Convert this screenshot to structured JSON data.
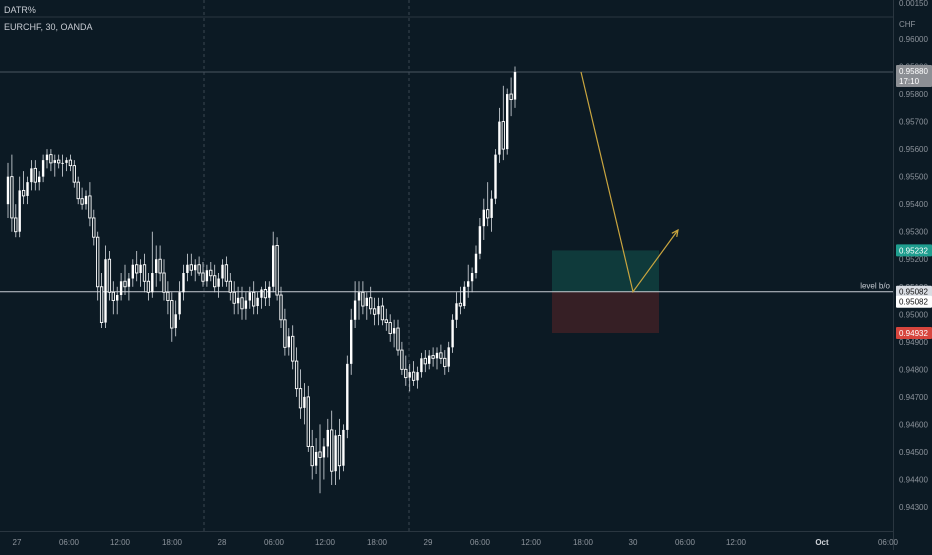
{
  "indicator_pane": {
    "label": "DATR%",
    "top_tick": "0.00150"
  },
  "symbol": {
    "label": "EURCHF, 30, OANDA"
  },
  "price_axis": {
    "currency": "CHF"
  },
  "colors": {
    "background": "#0c1a24",
    "candle_up": "#ffffff",
    "candle_down": "#ffffff",
    "wick": "#d9dde3",
    "grid_session": "#3a4651",
    "level_line": "#c8ccd3",
    "arrow": "#c9a53f",
    "target_zone": "#0f3e3e",
    "stop_zone": "#3b2026",
    "target_label": "#1f9e8f",
    "stop_label": "#d6453d",
    "last_price_label": "#8c8f94"
  },
  "chart_data": {
    "type": "candlestick",
    "title": "EURCHF, 30, OANDA",
    "ylim": [
      0.9425,
      0.962
    ],
    "y_ticks": [
      "0.96000",
      "0.95900",
      "0.95800",
      "0.95700",
      "0.95600",
      "0.95500",
      "0.95400",
      "0.95300",
      "0.95200",
      "0.95100",
      "0.95000",
      "0.94900",
      "0.94800",
      "0.94700",
      "0.94600",
      "0.94500",
      "0.94400",
      "0.94300"
    ],
    "x_ticks": [
      "27",
      "06:00",
      "12:00",
      "18:00",
      "28",
      "06:00",
      "12:00",
      "18:00",
      "29",
      "06:00",
      "12:00",
      "18:00",
      "30",
      "06:00",
      "12:00",
      "Oct",
      "06:00"
    ],
    "session_breaks": [
      "28",
      "29"
    ],
    "price_labels": {
      "last_price": "0.95880",
      "countdown": "17:10",
      "target": "0.95232",
      "level": "0.95082",
      "level_copy": "0.95082",
      "stop": "0.94932"
    },
    "level_line": {
      "label": "level b/o",
      "value": 0.95082
    },
    "position_tool": {
      "entry": 0.95082,
      "target": 0.95232,
      "stop": 0.94932
    },
    "projection_path": [
      {
        "bar": 146,
        "value": 0.9588
      },
      {
        "bar": 163,
        "value": 0.95082
      },
      {
        "bar": 174,
        "value": 0.953
      }
    ],
    "bar_interval_minutes": 30,
    "ohlc": [
      [
        0.954,
        0.9555,
        0.9535,
        0.955
      ],
      [
        0.955,
        0.9558,
        0.953,
        0.9535
      ],
      [
        0.9535,
        0.954,
        0.9528,
        0.953
      ],
      [
        0.953,
        0.955,
        0.9528,
        0.9545
      ],
      [
        0.9545,
        0.9552,
        0.954,
        0.9543
      ],
      [
        0.9543,
        0.955,
        0.954,
        0.9548
      ],
      [
        0.9548,
        0.9556,
        0.9545,
        0.9553
      ],
      [
        0.9553,
        0.9556,
        0.9545,
        0.9548
      ],
      [
        0.9548,
        0.9552,
        0.9545,
        0.955
      ],
      [
        0.955,
        0.9558,
        0.9548,
        0.9556
      ],
      [
        0.9556,
        0.956,
        0.9553,
        0.9558
      ],
      [
        0.9558,
        0.956,
        0.9552,
        0.9555
      ],
      [
        0.9555,
        0.9558,
        0.955,
        0.9556
      ],
      [
        0.9556,
        0.9558,
        0.9553,
        0.9555
      ],
      [
        0.9555,
        0.9558,
        0.955,
        0.9555
      ],
      [
        0.9555,
        0.9557,
        0.9552,
        0.9556
      ],
      [
        0.9556,
        0.9558,
        0.9552,
        0.9554
      ],
      [
        0.9554,
        0.9556,
        0.9546,
        0.9548
      ],
      [
        0.9548,
        0.955,
        0.954,
        0.9542
      ],
      [
        0.9542,
        0.9546,
        0.9538,
        0.954
      ],
      [
        0.954,
        0.9545,
        0.9538,
        0.9543
      ],
      [
        0.9543,
        0.9548,
        0.9532,
        0.9535
      ],
      [
        0.9535,
        0.9538,
        0.9525,
        0.9528
      ],
      [
        0.9528,
        0.953,
        0.9505,
        0.951
      ],
      [
        0.951,
        0.9515,
        0.9495,
        0.9497
      ],
      [
        0.9497,
        0.9525,
        0.9495,
        0.952
      ],
      [
        0.952,
        0.9523,
        0.9505,
        0.9508
      ],
      [
        0.9508,
        0.9512,
        0.95,
        0.9505
      ],
      [
        0.9505,
        0.951,
        0.95,
        0.9507
      ],
      [
        0.9507,
        0.9515,
        0.9505,
        0.9512
      ],
      [
        0.9512,
        0.9518,
        0.9507,
        0.951
      ],
      [
        0.951,
        0.9515,
        0.9505,
        0.9513
      ],
      [
        0.9513,
        0.952,
        0.951,
        0.9518
      ],
      [
        0.9518,
        0.9523,
        0.9512,
        0.9515
      ],
      [
        0.9515,
        0.952,
        0.951,
        0.9518
      ],
      [
        0.9518,
        0.9522,
        0.9508,
        0.9512
      ],
      [
        0.9512,
        0.9515,
        0.9505,
        0.9508
      ],
      [
        0.9508,
        0.953,
        0.9506,
        0.9515
      ],
      [
        0.9515,
        0.9525,
        0.951,
        0.952
      ],
      [
        0.952,
        0.9525,
        0.9512,
        0.9515
      ],
      [
        0.9515,
        0.952,
        0.9505,
        0.9508
      ],
      [
        0.9508,
        0.9512,
        0.95,
        0.9505
      ],
      [
        0.9505,
        0.9508,
        0.949,
        0.9495
      ],
      [
        0.9495,
        0.9505,
        0.9492,
        0.95
      ],
      [
        0.95,
        0.9512,
        0.9498,
        0.9508
      ],
      [
        0.9508,
        0.9518,
        0.9505,
        0.9515
      ],
      [
        0.9515,
        0.9522,
        0.9512,
        0.9518
      ],
      [
        0.9518,
        0.9522,
        0.9514,
        0.9516
      ],
      [
        0.9516,
        0.952,
        0.9512,
        0.9518
      ],
      [
        0.9518,
        0.9521,
        0.9514,
        0.9515
      ],
      [
        0.9515,
        0.9519,
        0.951,
        0.9512
      ],
      [
        0.9512,
        0.9518,
        0.951,
        0.9516
      ],
      [
        0.9516,
        0.9519,
        0.9512,
        0.9514
      ],
      [
        0.9514,
        0.9518,
        0.9508,
        0.951
      ],
      [
        0.951,
        0.9515,
        0.9506,
        0.9513
      ],
      [
        0.9513,
        0.952,
        0.951,
        0.9518
      ],
      [
        0.9518,
        0.9521,
        0.951,
        0.9512
      ],
      [
        0.9512,
        0.9515,
        0.9505,
        0.9508
      ],
      [
        0.9508,
        0.9512,
        0.95,
        0.9504
      ],
      [
        0.9504,
        0.951,
        0.95,
        0.9506
      ],
      [
        0.9506,
        0.951,
        0.9498,
        0.9502
      ],
      [
        0.9502,
        0.9508,
        0.9498,
        0.9505
      ],
      [
        0.9505,
        0.951,
        0.9502,
        0.9508
      ],
      [
        0.9508,
        0.9512,
        0.95,
        0.9503
      ],
      [
        0.9503,
        0.9508,
        0.95,
        0.9506
      ],
      [
        0.9506,
        0.951,
        0.9502,
        0.9509
      ],
      [
        0.9509,
        0.9512,
        0.9503,
        0.9506
      ],
      [
        0.9506,
        0.9512,
        0.9503,
        0.951
      ],
      [
        0.951,
        0.953,
        0.9508,
        0.9525
      ],
      [
        0.9525,
        0.9528,
        0.9505,
        0.9507
      ],
      [
        0.9507,
        0.951,
        0.9495,
        0.9498
      ],
      [
        0.9498,
        0.9502,
        0.9485,
        0.9488
      ],
      [
        0.9488,
        0.9495,
        0.9485,
        0.9492
      ],
      [
        0.9492,
        0.9496,
        0.948,
        0.9483
      ],
      [
        0.9483,
        0.9488,
        0.947,
        0.9473
      ],
      [
        0.9473,
        0.948,
        0.9462,
        0.9466
      ],
      [
        0.9466,
        0.9475,
        0.946,
        0.947
      ],
      [
        0.947,
        0.9474,
        0.945,
        0.9452
      ],
      [
        0.9452,
        0.9458,
        0.944,
        0.9445
      ],
      [
        0.9445,
        0.9455,
        0.9442,
        0.945
      ],
      [
        0.945,
        0.946,
        0.9435,
        0.9448
      ],
      [
        0.9448,
        0.9455,
        0.944,
        0.9452
      ],
      [
        0.9452,
        0.9462,
        0.9448,
        0.9458
      ],
      [
        0.9458,
        0.9465,
        0.9438,
        0.9443
      ],
      [
        0.9443,
        0.9458,
        0.9438,
        0.9456
      ],
      [
        0.9456,
        0.9462,
        0.944,
        0.9445
      ],
      [
        0.9445,
        0.946,
        0.9443,
        0.9458
      ],
      [
        0.9458,
        0.9485,
        0.9455,
        0.9482
      ],
      [
        0.9482,
        0.9502,
        0.9478,
        0.9498
      ],
      [
        0.9498,
        0.9512,
        0.9495,
        0.9505
      ],
      [
        0.9505,
        0.9512,
        0.9498,
        0.9508
      ],
      [
        0.9508,
        0.9512,
        0.95,
        0.9503
      ],
      [
        0.9503,
        0.9508,
        0.9498,
        0.9506
      ],
      [
        0.9506,
        0.951,
        0.95,
        0.9502
      ],
      [
        0.9502,
        0.9506,
        0.9496,
        0.95
      ],
      [
        0.95,
        0.9506,
        0.9496,
        0.9503
      ],
      [
        0.9503,
        0.9506,
        0.9496,
        0.9498
      ],
      [
        0.9498,
        0.9502,
        0.9494,
        0.9497
      ],
      [
        0.9497,
        0.95,
        0.949,
        0.9493
      ],
      [
        0.9493,
        0.9498,
        0.9488,
        0.9495
      ],
      [
        0.9495,
        0.9498,
        0.9485,
        0.9487
      ],
      [
        0.9487,
        0.949,
        0.9478,
        0.948
      ],
      [
        0.948,
        0.9485,
        0.9474,
        0.9477
      ],
      [
        0.9477,
        0.9482,
        0.9472,
        0.9479
      ],
      [
        0.9479,
        0.9483,
        0.9474,
        0.9476
      ],
      [
        0.9476,
        0.9481,
        0.9473,
        0.9479
      ],
      [
        0.9479,
        0.9486,
        0.9477,
        0.9484
      ],
      [
        0.9484,
        0.9487,
        0.9479,
        0.9482
      ],
      [
        0.9482,
        0.9487,
        0.948,
        0.9485
      ],
      [
        0.9485,
        0.9488,
        0.9481,
        0.9484
      ],
      [
        0.9484,
        0.9488,
        0.948,
        0.9486
      ],
      [
        0.9486,
        0.9489,
        0.9482,
        0.9484
      ],
      [
        0.9484,
        0.9487,
        0.9478,
        0.9481
      ],
      [
        0.9481,
        0.949,
        0.9479,
        0.9488
      ],
      [
        0.9488,
        0.95,
        0.9486,
        0.9498
      ],
      [
        0.9498,
        0.9508,
        0.9495,
        0.9504
      ],
      [
        0.9504,
        0.951,
        0.95,
        0.9503
      ],
      [
        0.9503,
        0.9512,
        0.9502,
        0.951
      ],
      [
        0.951,
        0.9518,
        0.9506,
        0.9512
      ],
      [
        0.9512,
        0.9517,
        0.9508,
        0.9515
      ],
      [
        0.9515,
        0.9525,
        0.9513,
        0.9522
      ],
      [
        0.9522,
        0.9535,
        0.952,
        0.9532
      ],
      [
        0.9532,
        0.9542,
        0.9527,
        0.9538
      ],
      [
        0.9538,
        0.9548,
        0.9532,
        0.9535
      ],
      [
        0.9535,
        0.9545,
        0.953,
        0.9542
      ],
      [
        0.9542,
        0.956,
        0.954,
        0.9558
      ],
      [
        0.9558,
        0.9575,
        0.9555,
        0.957
      ],
      [
        0.957,
        0.9583,
        0.9556,
        0.956
      ],
      [
        0.956,
        0.9582,
        0.9558,
        0.958
      ],
      [
        0.958,
        0.9586,
        0.9572,
        0.9578
      ],
      [
        0.9578,
        0.959,
        0.9575,
        0.9588
      ]
    ]
  }
}
